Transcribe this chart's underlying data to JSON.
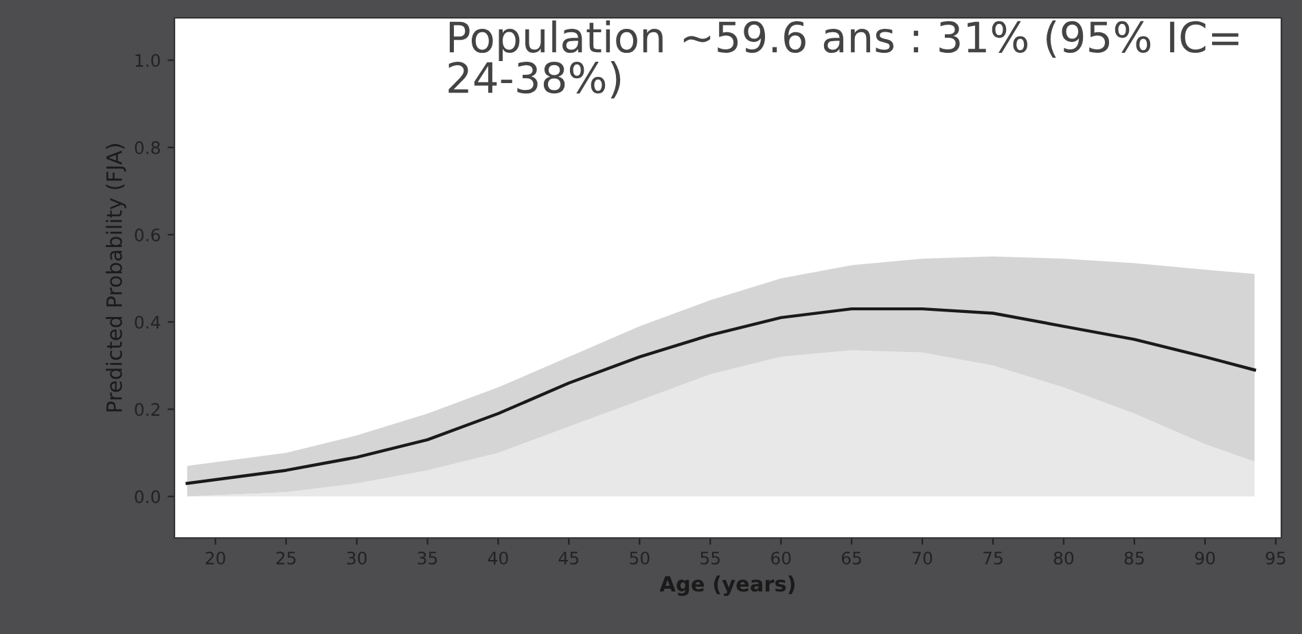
{
  "chart_data": {
    "type": "line",
    "xlabel": "Age (years)",
    "ylabel": "Predicted Probability (FJA)",
    "annotations": [
      "Population ~59.6 ans : 31% (95% IC= 24-38%)"
    ],
    "x": [
      18,
      25,
      30,
      35,
      40,
      45,
      50,
      55,
      60,
      65,
      70,
      75,
      80,
      85,
      90,
      93.5
    ],
    "series": [
      {
        "type": "area",
        "color": "#e8e8e8",
        "values": [
          0.0,
          0.01,
          0.03,
          0.06,
          0.1,
          0.16,
          0.22,
          0.28,
          0.32,
          0.335,
          0.33,
          0.3,
          0.25,
          0.19,
          0.12,
          0.08
        ]
      },
      {
        "color": "#1a1a1a",
        "values": [
          0.03,
          0.06,
          0.09,
          0.13,
          0.19,
          0.26,
          0.32,
          0.37,
          0.41,
          0.43,
          0.43,
          0.42,
          0.39,
          0.36,
          0.32,
          0.29
        ],
        "lower": [
          0.0,
          0.01,
          0.03,
          0.06,
          0.1,
          0.16,
          0.22,
          0.28,
          0.32,
          0.335,
          0.33,
          0.3,
          0.25,
          0.19,
          0.12,
          0.08
        ],
        "upper": [
          0.07,
          0.1,
          0.14,
          0.19,
          0.25,
          0.32,
          0.39,
          0.45,
          0.5,
          0.53,
          0.545,
          0.55,
          0.545,
          0.535,
          0.52,
          0.51
        ]
      }
    ],
    "xlim": [
      17.1,
      95.4
    ],
    "xticks": [
      20,
      25,
      30,
      35,
      40,
      45,
      50,
      55,
      60,
      65,
      70,
      75,
      80,
      85,
      90,
      95
    ],
    "ylim": [
      -0.095,
      1.097
    ],
    "yticks": [
      {
        "value": 0,
        "label": "0.0"
      },
      0.2,
      0.4,
      0.6,
      0.8,
      {
        "value": 1,
        "label": "1.0"
      }
    ],
    "grid": false,
    "legend": false,
    "marker": "none",
    "line_style": "solid"
  }
}
